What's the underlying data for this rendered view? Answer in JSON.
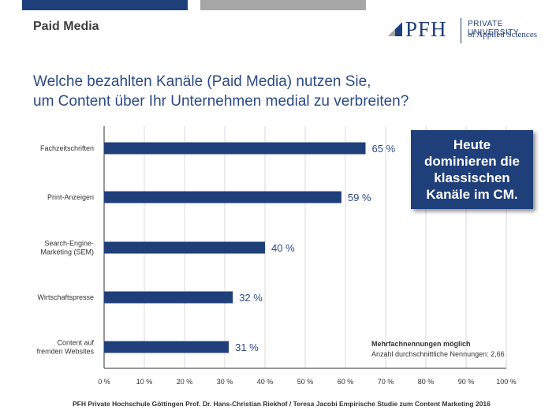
{
  "header": {
    "section_title": "Paid Media",
    "logo_word": "PFH",
    "logo_line1": "PRIVATE UNIVERSITY",
    "logo_line2": "of Applied Sciences"
  },
  "question": {
    "line1": "Welche bezahlten Kanäle (Paid Media) nutzen Sie,",
    "line2": "um Content über Ihr Unternehmen medial zu verbreiten?"
  },
  "callout": {
    "text": "Heute dominieren die klassischen Kanäle im CM."
  },
  "note": {
    "title": "Mehrfachnennungen möglich",
    "subtitle": "Anzahl durchschnittliche Nennungen: 2,66"
  },
  "footer": "PFH Private Hochschule Göttingen Prof. Dr. Hans-Christian Riekhof / Teresa Jacobi Empirische Studie zum Content Marketing  2016",
  "colors": {
    "bar": "#1f3f7a",
    "label": "#2b4a86",
    "accent_gray": "#a6a6a6"
  },
  "chart_data": {
    "type": "bar",
    "orientation": "horizontal",
    "categories": [
      [
        "Fachzeitschriften"
      ],
      [
        "Print-Anzeigen"
      ],
      [
        "Search-Engine-",
        "Marketing (SEM)"
      ],
      [
        "Wirtschaftspresse"
      ],
      [
        "Content auf",
        "fremden Websites"
      ]
    ],
    "values": [
      65,
      59,
      40,
      32,
      31
    ],
    "value_labels": [
      "65 %",
      "59 %",
      "40 %",
      "32 %",
      "31 %"
    ],
    "xlim": [
      0,
      100
    ],
    "xticks": [
      "0 %",
      "10 %",
      "20 %",
      "30 %",
      "40 %",
      "50 %",
      "60 %",
      "70 %",
      "80 %",
      "90 %",
      "100 %"
    ],
    "grid": true
  }
}
